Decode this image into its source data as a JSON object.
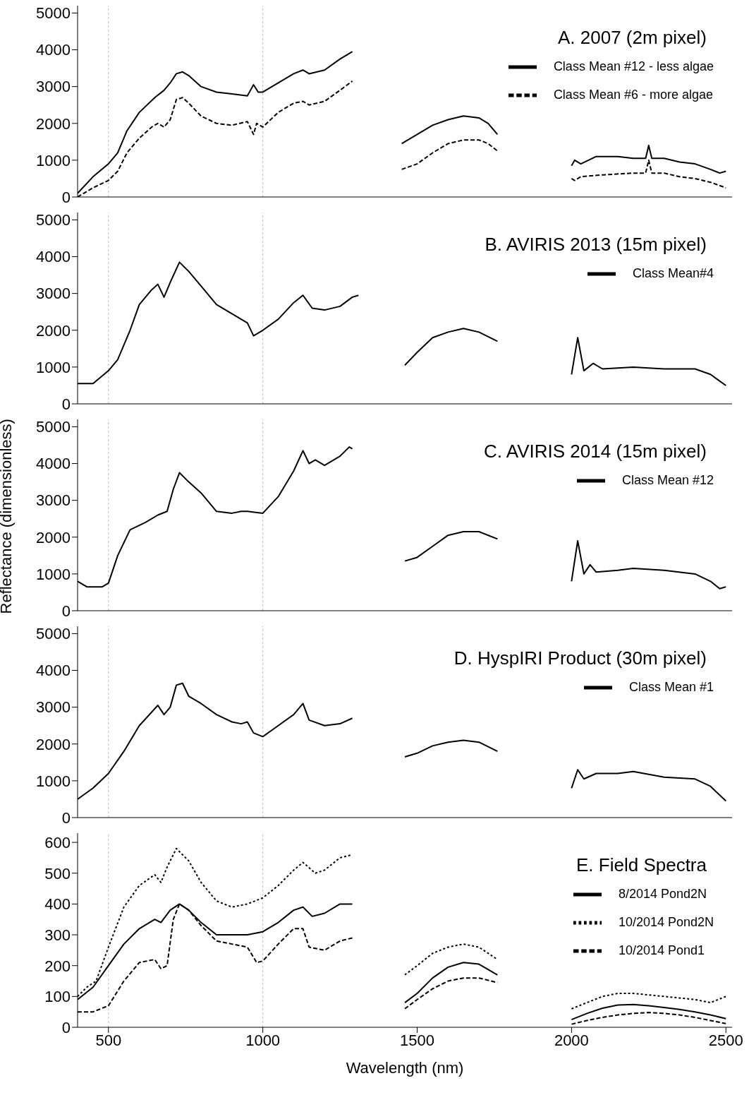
{
  "chart_data": [
    {
      "type": "line",
      "title": "A. 2007 (2m pixel)",
      "xlim": [
        400,
        2520
      ],
      "xticks": [
        500,
        1000,
        1500,
        2000,
        2500
      ],
      "ylim": [
        0,
        5200
      ],
      "yticks": [
        0,
        1000,
        2000,
        3000,
        4000,
        5000
      ],
      "tick_labels": "y",
      "legend": "top right",
      "ref_lines": [
        {
          "axis": "x",
          "value": 500,
          "color": "#bbbbbb",
          "line_style": "dotted"
        },
        {
          "axis": "x",
          "value": 1000,
          "color": "#bbbbbb",
          "line_style": "dotted"
        }
      ],
      "series": [
        {
          "name": "Class Mean #12 - less algae",
          "color": "#000000",
          "line_style": "solid",
          "x": [
            400,
            450,
            500,
            530,
            560,
            600,
            650,
            680,
            700,
            720,
            740,
            760,
            800,
            850,
            900,
            950,
            960,
            970,
            985,
            1000,
            1050,
            1100,
            1130,
            1150,
            1200,
            1250,
            1290,
            1370,
            1450,
            1500,
            1550,
            1600,
            1650,
            1700,
            1730,
            1760,
            1880,
            2000,
            2010,
            2030,
            2080,
            2150,
            2200,
            2240,
            2250,
            2260,
            2300,
            2350,
            2400,
            2450,
            2480,
            2500
          ],
          "values": [
            100,
            550,
            900,
            1200,
            1800,
            2300,
            2700,
            2900,
            3100,
            3350,
            3400,
            3300,
            3000,
            2850,
            2800,
            2750,
            2900,
            3050,
            2850,
            2850,
            3100,
            3350,
            3450,
            3350,
            3450,
            3750,
            3950,
            null,
            1450,
            1700,
            1950,
            2100,
            2200,
            2150,
            2000,
            1700,
            null,
            850,
            1000,
            900,
            1100,
            1100,
            1050,
            1050,
            1400,
            1050,
            1050,
            950,
            900,
            750,
            650,
            700
          ]
        },
        {
          "name": "Class Mean #6 - more algae",
          "color": "#000000",
          "line_style": "dashed",
          "x": [
            400,
            450,
            500,
            530,
            560,
            600,
            640,
            660,
            680,
            700,
            720,
            740,
            760,
            800,
            850,
            900,
            950,
            970,
            980,
            1000,
            1050,
            1100,
            1130,
            1150,
            1200,
            1250,
            1290,
            1370,
            1450,
            1500,
            1550,
            1600,
            1650,
            1700,
            1730,
            1760,
            1880,
            2000,
            2010,
            2030,
            2100,
            2200,
            2240,
            2250,
            2260,
            2300,
            2350,
            2400,
            2450,
            2500
          ],
          "values": [
            0,
            250,
            450,
            700,
            1200,
            1600,
            1900,
            2000,
            1900,
            2100,
            2650,
            2700,
            2550,
            2200,
            2000,
            1950,
            2050,
            1700,
            2000,
            1900,
            2300,
            2550,
            2600,
            2500,
            2600,
            2900,
            3150,
            null,
            750,
            900,
            1200,
            1450,
            1550,
            1550,
            1450,
            1250,
            null,
            500,
            450,
            550,
            600,
            650,
            650,
            1000,
            650,
            650,
            550,
            500,
            400,
            250
          ]
        }
      ]
    },
    {
      "type": "line",
      "title": "B. AVIRIS 2013 (15m pixel)",
      "xlim": [
        400,
        2520
      ],
      "xticks": [
        500,
        1000,
        1500,
        2000,
        2500
      ],
      "ylim": [
        0,
        5200
      ],
      "yticks": [
        0,
        1000,
        2000,
        3000,
        4000,
        5000
      ],
      "tick_labels": "y",
      "legend": "top right",
      "ref_lines": [
        {
          "axis": "x",
          "value": 500,
          "color": "#bbbbbb",
          "line_style": "dotted"
        },
        {
          "axis": "x",
          "value": 1000,
          "color": "#bbbbbb",
          "line_style": "dotted"
        }
      ],
      "series": [
        {
          "name": "Class Mean#4",
          "color": "#000000",
          "line_style": "solid",
          "x": [
            400,
            450,
            500,
            530,
            570,
            600,
            640,
            660,
            680,
            700,
            730,
            760,
            800,
            850,
            900,
            950,
            970,
            1000,
            1050,
            1100,
            1130,
            1160,
            1200,
            1250,
            1290,
            1310,
            1380,
            1460,
            1500,
            1550,
            1600,
            1650,
            1700,
            1760,
            1880,
            2000,
            2020,
            2040,
            2070,
            2100,
            2200,
            2300,
            2400,
            2450,
            2500
          ],
          "values": [
            550,
            550,
            900,
            1200,
            2000,
            2700,
            3100,
            3250,
            2900,
            3300,
            3850,
            3600,
            3200,
            2700,
            2450,
            2200,
            1850,
            2000,
            2300,
            2750,
            2950,
            2600,
            2550,
            2650,
            2900,
            2950,
            null,
            1050,
            1400,
            1800,
            1950,
            2050,
            1950,
            1700,
            null,
            800,
            1800,
            900,
            1100,
            950,
            1000,
            950,
            950,
            800,
            500
          ]
        }
      ]
    },
    {
      "type": "line",
      "title": "C. AVIRIS 2014 (15m pixel)",
      "ylabel": "Reflectance (dimensionless)",
      "xlim": [
        400,
        2520
      ],
      "xticks": [
        500,
        1000,
        1500,
        2000,
        2500
      ],
      "ylim": [
        0,
        5200
      ],
      "yticks": [
        0,
        1000,
        2000,
        3000,
        4000,
        5000
      ],
      "tick_labels": "y",
      "legend": "top right",
      "ref_lines": [
        {
          "axis": "x",
          "value": 500,
          "color": "#bbbbbb",
          "line_style": "dotted"
        },
        {
          "axis": "x",
          "value": 1000,
          "color": "#bbbbbb",
          "line_style": "dotted"
        }
      ],
      "series": [
        {
          "name": "Class Mean #12",
          "color": "#000000",
          "line_style": "solid",
          "x": [
            400,
            430,
            480,
            500,
            530,
            570,
            620,
            660,
            690,
            710,
            730,
            760,
            800,
            850,
            900,
            930,
            950,
            1000,
            1050,
            1100,
            1130,
            1150,
            1170,
            1200,
            1250,
            1280,
            1290,
            1380,
            1460,
            1500,
            1550,
            1600,
            1650,
            1700,
            1760,
            1880,
            2000,
            2020,
            2040,
            2060,
            2080,
            2150,
            2200,
            2300,
            2400,
            2450,
            2480,
            2500
          ],
          "values": [
            800,
            650,
            650,
            750,
            1500,
            2200,
            2400,
            2600,
            2700,
            3300,
            3750,
            3500,
            3200,
            2700,
            2650,
            2700,
            2700,
            2650,
            3100,
            3800,
            4350,
            4000,
            4100,
            3950,
            4200,
            4450,
            4400,
            null,
            1350,
            1450,
            1750,
            2050,
            2150,
            2150,
            1950,
            null,
            800,
            1900,
            1000,
            1250,
            1050,
            1100,
            1150,
            1100,
            1000,
            800,
            600,
            650
          ]
        }
      ]
    },
    {
      "type": "line",
      "title": "D. HyspIRI Product (30m pixel)",
      "xlim": [
        400,
        2520
      ],
      "xticks": [
        500,
        1000,
        1500,
        2000,
        2500
      ],
      "ylim": [
        0,
        5200
      ],
      "yticks": [
        0,
        1000,
        2000,
        3000,
        4000,
        5000
      ],
      "tick_labels": "y",
      "legend": "top right",
      "ref_lines": [
        {
          "axis": "x",
          "value": 500,
          "color": "#bbbbbb",
          "line_style": "dotted"
        },
        {
          "axis": "x",
          "value": 1000,
          "color": "#bbbbbb",
          "line_style": "dotted"
        }
      ],
      "series": [
        {
          "name": "Class Mean #1",
          "color": "#000000",
          "line_style": "solid",
          "x": [
            400,
            450,
            500,
            550,
            600,
            660,
            680,
            700,
            720,
            740,
            760,
            800,
            850,
            900,
            930,
            950,
            970,
            1000,
            1050,
            1100,
            1130,
            1150,
            1200,
            1250,
            1290,
            1380,
            1460,
            1500,
            1550,
            1600,
            1650,
            1700,
            1760,
            1880,
            2000,
            2020,
            2040,
            2080,
            2150,
            2200,
            2300,
            2400,
            2450,
            2500
          ],
          "values": [
            500,
            800,
            1200,
            1800,
            2500,
            3050,
            2800,
            3000,
            3600,
            3650,
            3300,
            3100,
            2800,
            2600,
            2550,
            2600,
            2300,
            2200,
            2500,
            2800,
            3100,
            2650,
            2500,
            2550,
            2700,
            null,
            1650,
            1750,
            1950,
            2050,
            2100,
            2050,
            1800,
            null,
            800,
            1300,
            1050,
            1200,
            1200,
            1250,
            1100,
            1050,
            850,
            450
          ]
        }
      ]
    },
    {
      "type": "line",
      "title": "E. Field Spectra",
      "xlabel": "Wavelength (nm)",
      "xlim": [
        400,
        2520
      ],
      "xticks": [
        500,
        1000,
        1500,
        2000,
        2500
      ],
      "ylim": [
        0,
        630
      ],
      "yticks": [
        0,
        100,
        200,
        300,
        400,
        500,
        600
      ],
      "legend": "top right",
      "ref_lines": [
        {
          "axis": "x",
          "value": 500,
          "color": "#bbbbbb",
          "line_style": "dotted"
        },
        {
          "axis": "x",
          "value": 1000,
          "color": "#bbbbbb",
          "line_style": "dotted"
        }
      ],
      "series": [
        {
          "name": "8/2014 Pond2N",
          "color": "#000000",
          "line_style": "solid",
          "x": [
            400,
            450,
            500,
            550,
            600,
            650,
            670,
            700,
            730,
            760,
            800,
            850,
            900,
            950,
            1000,
            1050,
            1100,
            1130,
            1160,
            1200,
            1250,
            1290,
            1380,
            1460,
            1500,
            1550,
            1600,
            1650,
            1700,
            1760,
            1880,
            2000,
            2050,
            2100,
            2150,
            2200,
            2250,
            2300,
            2350,
            2400,
            2450,
            2500
          ],
          "values": [
            90,
            130,
            200,
            270,
            320,
            350,
            340,
            380,
            400,
            380,
            340,
            300,
            300,
            300,
            310,
            340,
            380,
            390,
            360,
            370,
            400,
            400,
            null,
            80,
            110,
            160,
            195,
            210,
            205,
            170,
            null,
            25,
            45,
            62,
            72,
            74,
            70,
            64,
            58,
            50,
            40,
            28
          ]
        },
        {
          "name": "10/2014 Pond2N",
          "color": "#000000",
          "line_style": "dotted",
          "x": [
            400,
            430,
            460,
            500,
            550,
            600,
            650,
            670,
            690,
            720,
            760,
            800,
            850,
            900,
            950,
            1000,
            1050,
            1100,
            1130,
            1170,
            1200,
            1250,
            1290,
            1380,
            1460,
            1500,
            1550,
            1600,
            1650,
            1700,
            1760,
            1880,
            2000,
            2050,
            2100,
            2150,
            2200,
            2250,
            2300,
            2350,
            2400,
            2450,
            2500
          ],
          "values": [
            100,
            130,
            150,
            260,
            390,
            460,
            495,
            470,
            520,
            580,
            540,
            470,
            410,
            390,
            400,
            420,
            460,
            510,
            535,
            500,
            510,
            550,
            560,
            null,
            170,
            200,
            240,
            260,
            270,
            260,
            220,
            null,
            60,
            80,
            100,
            110,
            110,
            105,
            100,
            95,
            90,
            80,
            100
          ]
        },
        {
          "name": "10/2014 Pond1",
          "color": "#000000",
          "line_style": "dashed",
          "x": [
            400,
            450,
            500,
            550,
            600,
            650,
            670,
            690,
            710,
            730,
            760,
            800,
            850,
            900,
            950,
            980,
            1000,
            1050,
            1100,
            1130,
            1150,
            1200,
            1250,
            1290,
            1380,
            1460,
            1500,
            1550,
            1600,
            1650,
            1700,
            1760,
            1880,
            2000,
            2050,
            2100,
            2150,
            2200,
            2250,
            2300,
            2350,
            2400,
            2450,
            2500
          ],
          "values": [
            50,
            50,
            70,
            150,
            210,
            220,
            190,
            200,
            350,
            400,
            380,
            330,
            280,
            270,
            260,
            210,
            215,
            270,
            320,
            320,
            260,
            250,
            280,
            290,
            null,
            60,
            90,
            125,
            150,
            160,
            160,
            145,
            null,
            10,
            22,
            32,
            40,
            45,
            48,
            45,
            40,
            32,
            22,
            12
          ]
        }
      ]
    }
  ]
}
